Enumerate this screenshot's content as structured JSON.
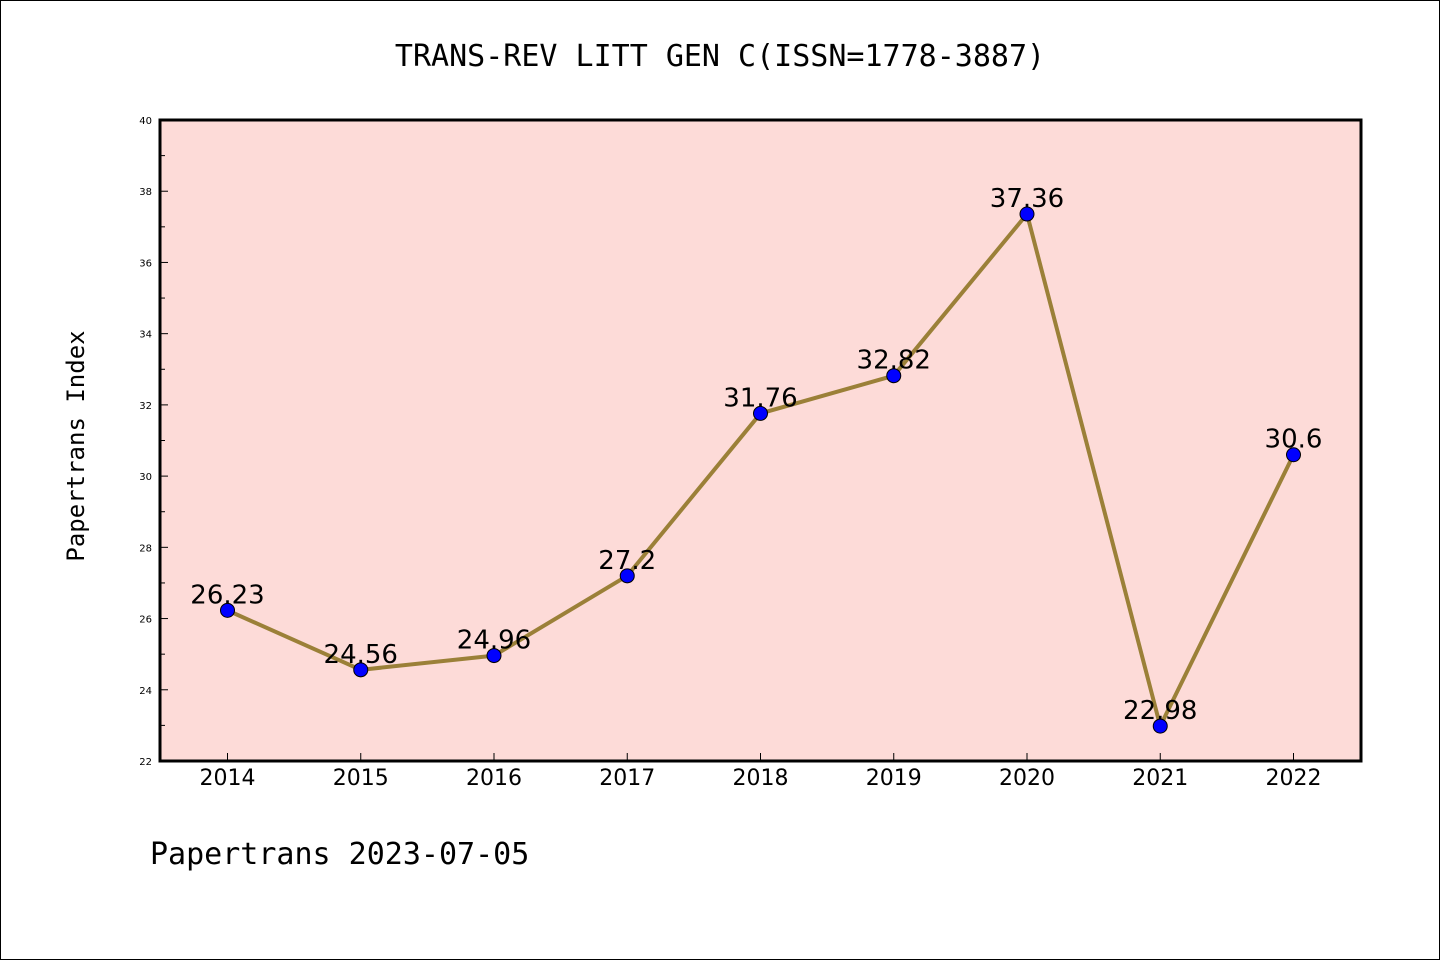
{
  "chart_data": {
    "type": "line",
    "title": "TRANS-REV LITT GEN C(ISSN=1778-3887)",
    "ylabel": "Papertrans Index",
    "xlabel": "",
    "footer": "Papertrans 2023-07-05",
    "categories": [
      "2014",
      "2015",
      "2016",
      "2017",
      "2018",
      "2019",
      "2020",
      "2021",
      "2022"
    ],
    "series": [
      {
        "values": [
          26.23,
          24.56,
          24.96,
          27.2,
          31.76,
          32.82,
          37.36,
          22.98,
          30.6
        ],
        "labels": [
          "26.23",
          "24.56",
          "24.96",
          "27.2",
          "31.76",
          "32.82",
          "37.36",
          "22.98",
          "30.6"
        ]
      }
    ],
    "ylim": [
      22,
      40
    ],
    "yticks": [
      "22",
      "24",
      "26",
      "28",
      "30",
      "32",
      "34",
      "36",
      "38",
      "40"
    ],
    "grid": false,
    "colors": {
      "plot_background": "#fddbd8",
      "line": "#9b8038",
      "marker": "#0000ff",
      "axis": "#000000"
    }
  }
}
